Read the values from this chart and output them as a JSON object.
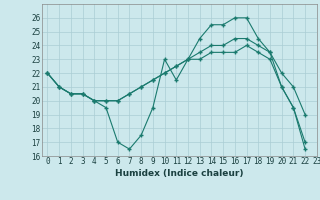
{
  "xlabel": "Humidex (Indice chaleur)",
  "bg_color": "#cce8ec",
  "line_color": "#1a7a6e",
  "grid_color": "#aacdd4",
  "xlim": [
    -0.5,
    23
  ],
  "ylim": [
    16,
    27
  ],
  "xticks": [
    0,
    1,
    2,
    3,
    4,
    5,
    6,
    7,
    8,
    9,
    10,
    11,
    12,
    13,
    14,
    15,
    16,
    17,
    18,
    19,
    20,
    21,
    22,
    23
  ],
  "yticks": [
    16,
    17,
    18,
    19,
    20,
    21,
    22,
    23,
    24,
    25,
    26
  ],
  "series": [
    [
      22,
      21,
      20.5,
      20.5,
      20,
      19.5,
      17.0,
      16.5,
      17.5,
      19.5,
      23,
      21.5,
      23,
      24.5,
      25.5,
      25.5,
      26.0,
      26.0,
      24.5,
      23.5,
      21.0,
      19.5,
      16.5
    ],
    [
      22,
      21,
      20.5,
      20.5,
      20,
      20.0,
      20.0,
      20.5,
      21.0,
      21.5,
      22,
      22.5,
      23,
      23.5,
      24.0,
      24.0,
      24.5,
      24.5,
      24.0,
      23.5,
      22.0,
      21.0,
      19.0
    ],
    [
      22,
      21,
      20.5,
      20.5,
      20,
      20.0,
      20.0,
      20.5,
      21.0,
      21.5,
      22,
      22.5,
      23,
      23.0,
      23.5,
      23.5,
      23.5,
      24.0,
      23.5,
      23.0,
      21.0,
      19.5,
      17.0
    ]
  ],
  "tick_fontsize": 5.5,
  "xlabel_fontsize": 6.5
}
